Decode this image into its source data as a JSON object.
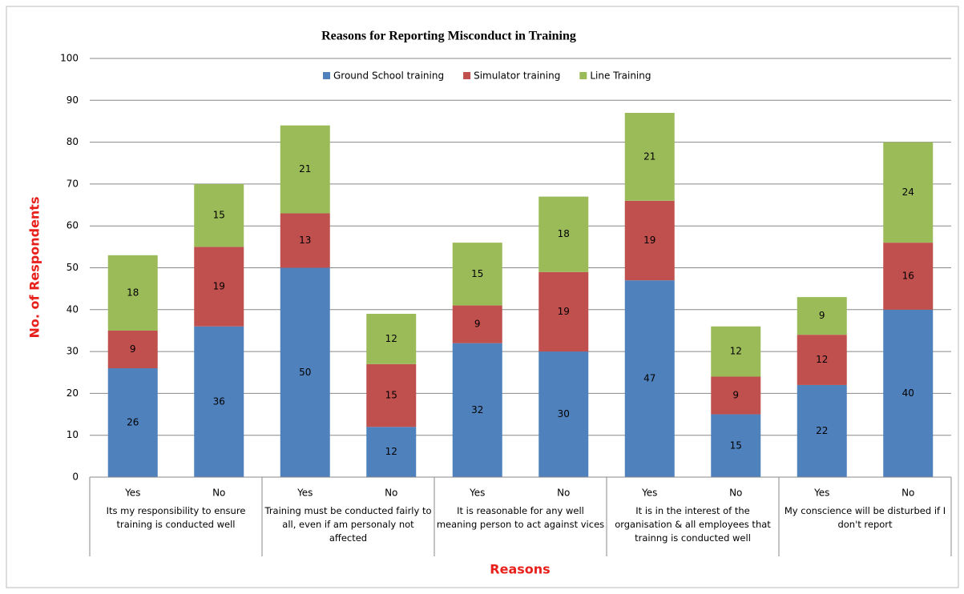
{
  "chart_data": {
    "type": "stacked_bar",
    "title": "Reasons for Reporting Misconduct in Training",
    "y_label": "No. of Respondents",
    "x_label": "Reasons",
    "categories": [
      "Yes",
      "No",
      "Yes",
      "No",
      "Yes",
      "No",
      "Yes",
      "No",
      "Yes",
      "No"
    ],
    "groups": [
      "Its my responsibility to ensure training is conducted well",
      "Training must be conducted fairly to all, even if am personaly not affected",
      "It is reasonable for any well meaning person to act against vices",
      "It is in the interest of the organisation & all employees that trainng is conducted well",
      "My conscience will be disturbed if I don't report"
    ],
    "series": [
      {
        "name": "Ground School training",
        "color": "#4f81bd",
        "values": [
          26,
          36,
          50,
          12,
          32,
          30,
          47,
          15,
          22,
          40
        ]
      },
      {
        "name": "Simulator training",
        "color": "#c0504d",
        "values": [
          9,
          19,
          13,
          15,
          9,
          19,
          19,
          9,
          12,
          16
        ]
      },
      {
        "name": "Line Training",
        "color": "#9bbb59",
        "values": [
          18,
          15,
          21,
          12,
          15,
          18,
          21,
          12,
          9,
          24
        ]
      }
    ],
    "ylim": [
      0,
      100
    ],
    "yticks": [
      0,
      10,
      20,
      30,
      40,
      50,
      60,
      70,
      80,
      90,
      100
    ],
    "grid": true,
    "legend": "top"
  }
}
